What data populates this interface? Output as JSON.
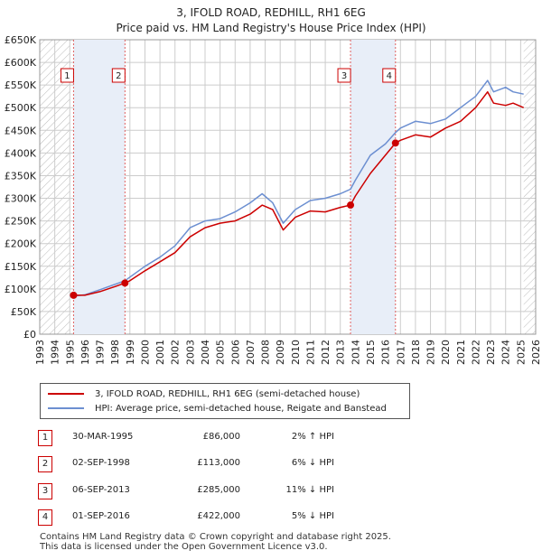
{
  "title_line1": "3, IFOLD ROAD, REDHILL, RH1 6EG",
  "title_line2": "Price paid vs. HM Land Registry's House Price Index (HPI)",
  "colors": {
    "price": "#cc0000",
    "hpi": "#6c8fd1",
    "grid": "#cccccc",
    "shade": "#e8eef8",
    "hatch": "#bbbbbb"
  },
  "chart_data": {
    "type": "line",
    "title": "Price paid vs. HM Land Registry's House Price Index (HPI)",
    "xlabel": "",
    "ylabel": "",
    "xlim": [
      1993,
      2026
    ],
    "ylim": [
      0,
      650000
    ],
    "yticks": [
      0,
      50000,
      100000,
      150000,
      200000,
      250000,
      300000,
      350000,
      400000,
      450000,
      500000,
      550000,
      600000,
      650000
    ],
    "ytick_labels": [
      "£0",
      "£50K",
      "£100K",
      "£150K",
      "£200K",
      "£250K",
      "£300K",
      "£350K",
      "£400K",
      "£450K",
      "£500K",
      "£550K",
      "£600K",
      "£650K"
    ],
    "xticks": [
      1993,
      1994,
      1995,
      1996,
      1997,
      1998,
      1999,
      2000,
      2001,
      2002,
      2003,
      2004,
      2005,
      2006,
      2007,
      2008,
      2009,
      2010,
      2011,
      2012,
      2013,
      2014,
      2015,
      2016,
      2017,
      2018,
      2019,
      2020,
      2021,
      2022,
      2023,
      2024,
      2025,
      2026
    ],
    "data_start_year": 1995.0,
    "data_end_year": 2025.2,
    "shaded_ranges": [
      [
        1995.25,
        1998.67
      ],
      [
        2013.68,
        2016.67
      ]
    ],
    "series": [
      {
        "name": "3, IFOLD ROAD, REDHILL, RH1 6EG (semi-detached house)",
        "x": [
          1995.25,
          1996,
          1997,
          1998,
          1998.67,
          1999,
          2000,
          2001,
          2002,
          2003,
          2004,
          2005,
          2006,
          2007,
          2007.8,
          2008.5,
          2009.2,
          2010,
          2011,
          2012,
          2013,
          2013.68,
          2014,
          2015,
          2016,
          2016.67,
          2017,
          2018,
          2019,
          2020,
          2021,
          2022,
          2022.8,
          2023.2,
          2024,
          2024.5,
          2025.2
        ],
        "values": [
          86000,
          86000,
          94000,
          105000,
          113000,
          118000,
          140000,
          160000,
          180000,
          215000,
          235000,
          245000,
          250000,
          265000,
          285000,
          275000,
          230000,
          258000,
          272000,
          270000,
          280000,
          285000,
          305000,
          355000,
          395000,
          422000,
          428000,
          440000,
          435000,
          455000,
          470000,
          500000,
          535000,
          510000,
          505000,
          510000,
          500000
        ]
      },
      {
        "name": "HPI: Average price, semi-detached house, Reigate and Banstead",
        "x": [
          1995.0,
          1995.25,
          1996,
          1997,
          1998,
          1998.67,
          1999,
          2000,
          2001,
          2002,
          2003,
          2004,
          2005,
          2006,
          2007,
          2007.8,
          2008.5,
          2009.2,
          2010,
          2011,
          2012,
          2013,
          2013.68,
          2014,
          2015,
          2016,
          2016.67,
          2017,
          2018,
          2019,
          2020,
          2021,
          2022,
          2022.8,
          2023.2,
          2024,
          2024.5,
          2025.2
        ],
        "values": [
          85000,
          84000,
          87000,
          98000,
          110000,
          118000,
          126000,
          150000,
          170000,
          195000,
          235000,
          250000,
          255000,
          270000,
          290000,
          310000,
          290000,
          245000,
          275000,
          295000,
          300000,
          310000,
          320000,
          340000,
          395000,
          420000,
          445000,
          455000,
          470000,
          465000,
          475000,
          500000,
          525000,
          560000,
          535000,
          545000,
          535000,
          530000
        ]
      }
    ],
    "sales": [
      {
        "label": "1",
        "x": 1995.25,
        "value": 86000
      },
      {
        "label": "2",
        "x": 1998.67,
        "value": 113000
      },
      {
        "label": "3",
        "x": 2013.68,
        "value": 285000
      },
      {
        "label": "4",
        "x": 2016.67,
        "value": 422000
      }
    ]
  },
  "legend": {
    "price_label": "3, IFOLD ROAD, REDHILL, RH1 6EG (semi-detached house)",
    "hpi_label": "HPI: Average price, semi-detached house, Reigate and Banstead"
  },
  "transactions": [
    {
      "num": "1",
      "date": "30-MAR-1995",
      "price": "£86,000",
      "hpi": "2% ↑ HPI"
    },
    {
      "num": "2",
      "date": "02-SEP-1998",
      "price": "£113,000",
      "hpi": "6% ↓ HPI"
    },
    {
      "num": "3",
      "date": "06-SEP-2013",
      "price": "£285,000",
      "hpi": "11% ↓ HPI"
    },
    {
      "num": "4",
      "date": "01-SEP-2016",
      "price": "£422,000",
      "hpi": "5% ↓ HPI"
    }
  ],
  "footer_line1": "Contains HM Land Registry data © Crown copyright and database right 2025.",
  "footer_line2": "This data is licensed under the Open Government Licence v3.0."
}
